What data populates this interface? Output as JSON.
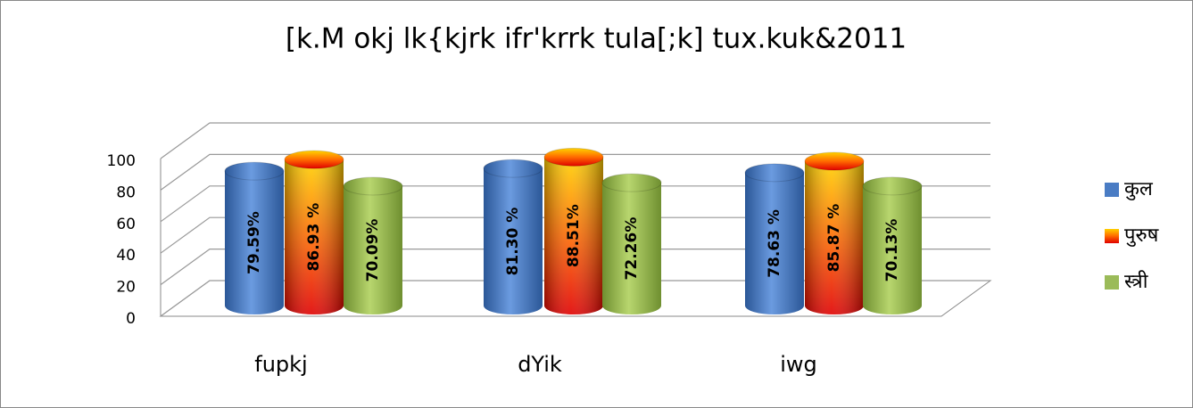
{
  "chart_data": {
    "type": "bar3d",
    "title": "[k.M okj lk{kjrk ifr'krrk tula[;k] tux.kuk&2011",
    "categories": [
      "fupkj",
      "dYik",
      "iwg"
    ],
    "series": [
      {
        "name": "कुल",
        "color": "#4a7cc4",
        "values": [
          79.59,
          81.3,
          78.63
        ],
        "value_labels": [
          "79.59%",
          "81.30 %",
          "78.63 %"
        ]
      },
      {
        "name": "पुरुष",
        "color": "#f03000",
        "values": [
          86.93,
          88.51,
          85.87
        ],
        "value_labels": [
          "86.93 %",
          "88.51%",
          "85.87 %"
        ]
      },
      {
        "name": "स्त्री",
        "color": "#9bbb59",
        "values": [
          70.09,
          72.26,
          70.13
        ],
        "value_labels": [
          "70.09%",
          "72.26%",
          "70.13%"
        ]
      }
    ],
    "ylim": [
      0,
      100
    ],
    "yticks": [
      0,
      20,
      40,
      60,
      80,
      100
    ],
    "grid": true,
    "legend": "right"
  }
}
